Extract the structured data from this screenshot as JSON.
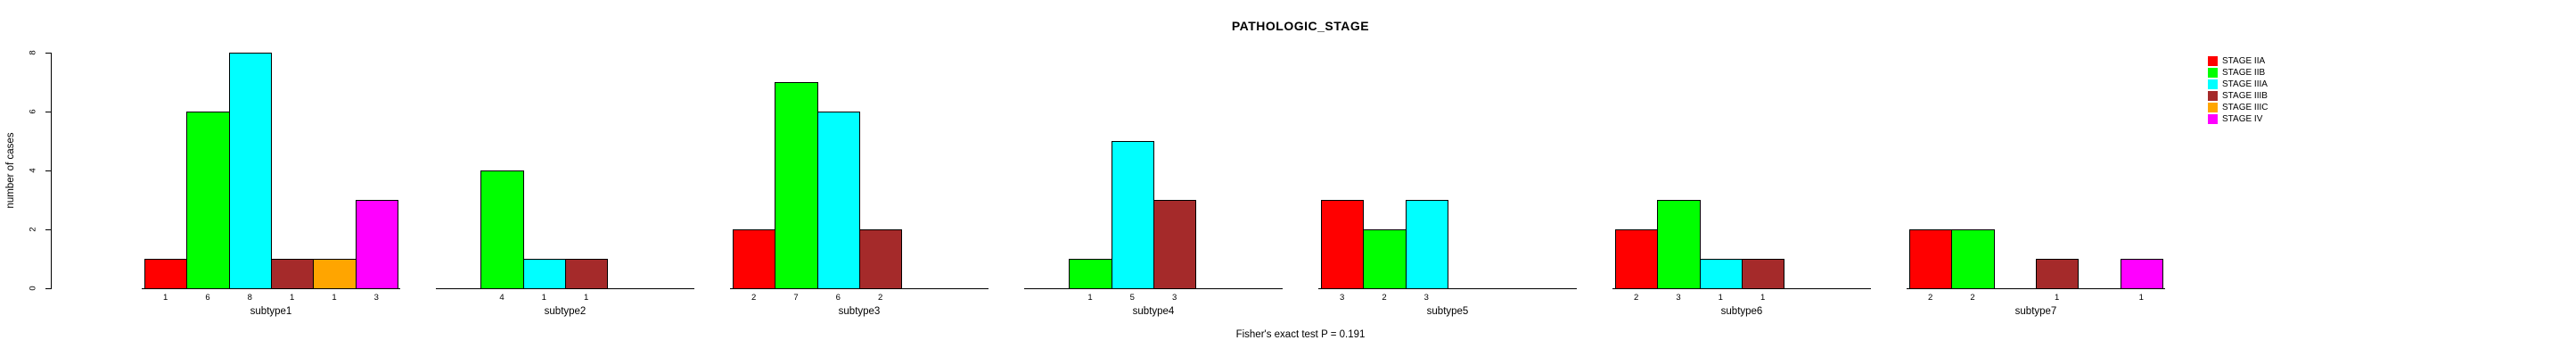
{
  "chart_data": {
    "type": "bar",
    "title": "PATHOLOGIC_STAGE",
    "ylabel": "number of cases",
    "annotation": "Fisher's exact test P = 0.191",
    "ylim": [
      0,
      8
    ],
    "yticks": [
      0,
      2,
      4,
      6,
      8
    ],
    "grid": false,
    "legend_position": "right",
    "categories": [
      "subtype1",
      "subtype2",
      "subtype3",
      "subtype4",
      "subtype5",
      "subtype6",
      "subtype7"
    ],
    "series": [
      {
        "name": "STAGE IIA",
        "color": "#FF0000",
        "values": [
          1,
          0,
          2,
          0,
          3,
          2,
          2
        ]
      },
      {
        "name": "STAGE IIB",
        "color": "#00FF00",
        "values": [
          6,
          4,
          7,
          1,
          2,
          3,
          2
        ]
      },
      {
        "name": "STAGE IIIA",
        "color": "#00FFFF",
        "values": [
          8,
          1,
          6,
          5,
          3,
          1,
          0
        ]
      },
      {
        "name": "STAGE IIIB",
        "color": "#A52A2A",
        "values": [
          1,
          1,
          2,
          3,
          0,
          1,
          1
        ]
      },
      {
        "name": "STAGE IIIC",
        "color": "#FFA500",
        "values": [
          1,
          0,
          0,
          0,
          0,
          0,
          0
        ]
      },
      {
        "name": "STAGE IV",
        "color": "#FF00FF",
        "values": [
          3,
          0,
          0,
          0,
          0,
          0,
          1
        ]
      }
    ],
    "bar_value_labels_shown": true,
    "zero_bars_hidden": true
  }
}
